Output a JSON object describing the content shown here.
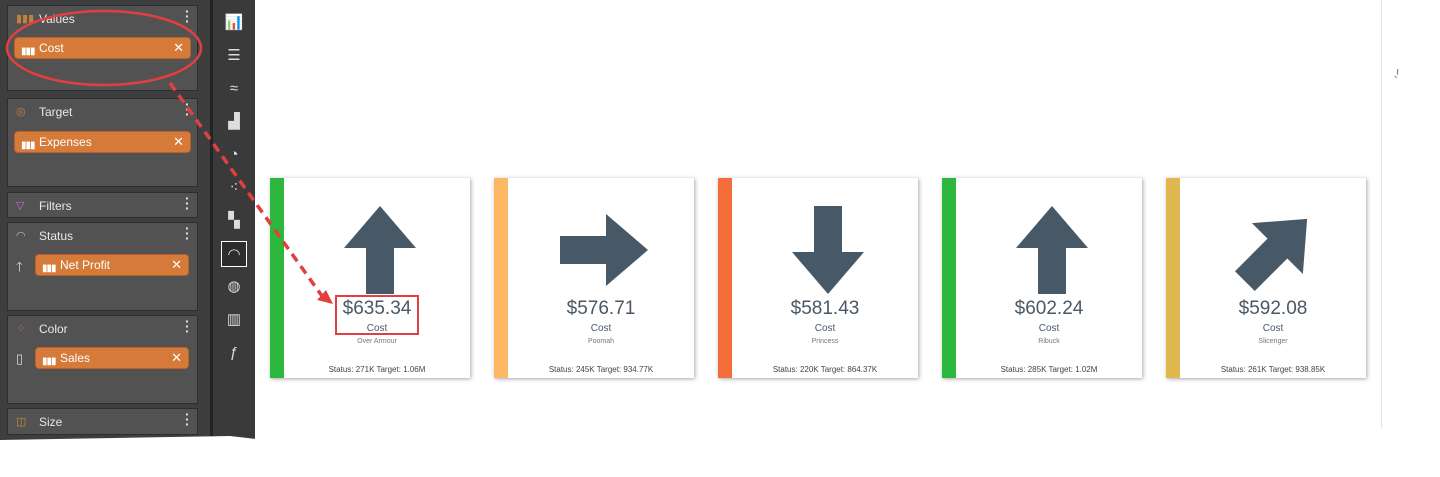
{
  "fields": {
    "values": {
      "label": "Values",
      "pill": "Cost"
    },
    "target": {
      "label": "Target",
      "pill": "Expenses"
    },
    "filters": {
      "label": "Filters"
    },
    "status": {
      "label": "Status",
      "pill": "Net Profit"
    },
    "color": {
      "label": "Color",
      "pill": "Sales"
    },
    "size": {
      "label": "Size"
    }
  },
  "toolbar": [
    "bar-chart-icon",
    "horizontal-bar-icon",
    "line-chart-icon",
    "area-chart-icon",
    "pie-chart-icon",
    "scatter-icon",
    "treemap-icon",
    "gauge-icon",
    "map-globe-icon",
    "grid-table-icon",
    "formula-chart-icon"
  ],
  "toolbar_selected": "gauge-icon",
  "cards": [
    {
      "value": "$635.34",
      "label": "Cost",
      "name": "Over Armour",
      "footer": "Status: 271K Target: 1.06M",
      "color": "#2db83d",
      "direction": "up"
    },
    {
      "value": "$576.71",
      "label": "Cost",
      "name": "Poomah",
      "footer": "Status: 245K Target: 934.77K",
      "color": "#fdb863",
      "direction": "right"
    },
    {
      "value": "$581.43",
      "label": "Cost",
      "name": "Princess",
      "footer": "Status: 220K Target: 864.37K",
      "color": "#f46d3a",
      "direction": "down"
    },
    {
      "value": "$602.24",
      "label": "Cost",
      "name": "Ribuck",
      "footer": "Status: 285K Target: 1.02M",
      "color": "#2db83d",
      "direction": "up"
    },
    {
      "value": "$592.08",
      "label": "Cost",
      "name": "Slicenger",
      "footer": "Status: 261K Target: 938.85K",
      "color": "#e0b84f",
      "direction": "up-right"
    }
  ],
  "annotation_color": "#e04040",
  "arrow_color": "#475966"
}
